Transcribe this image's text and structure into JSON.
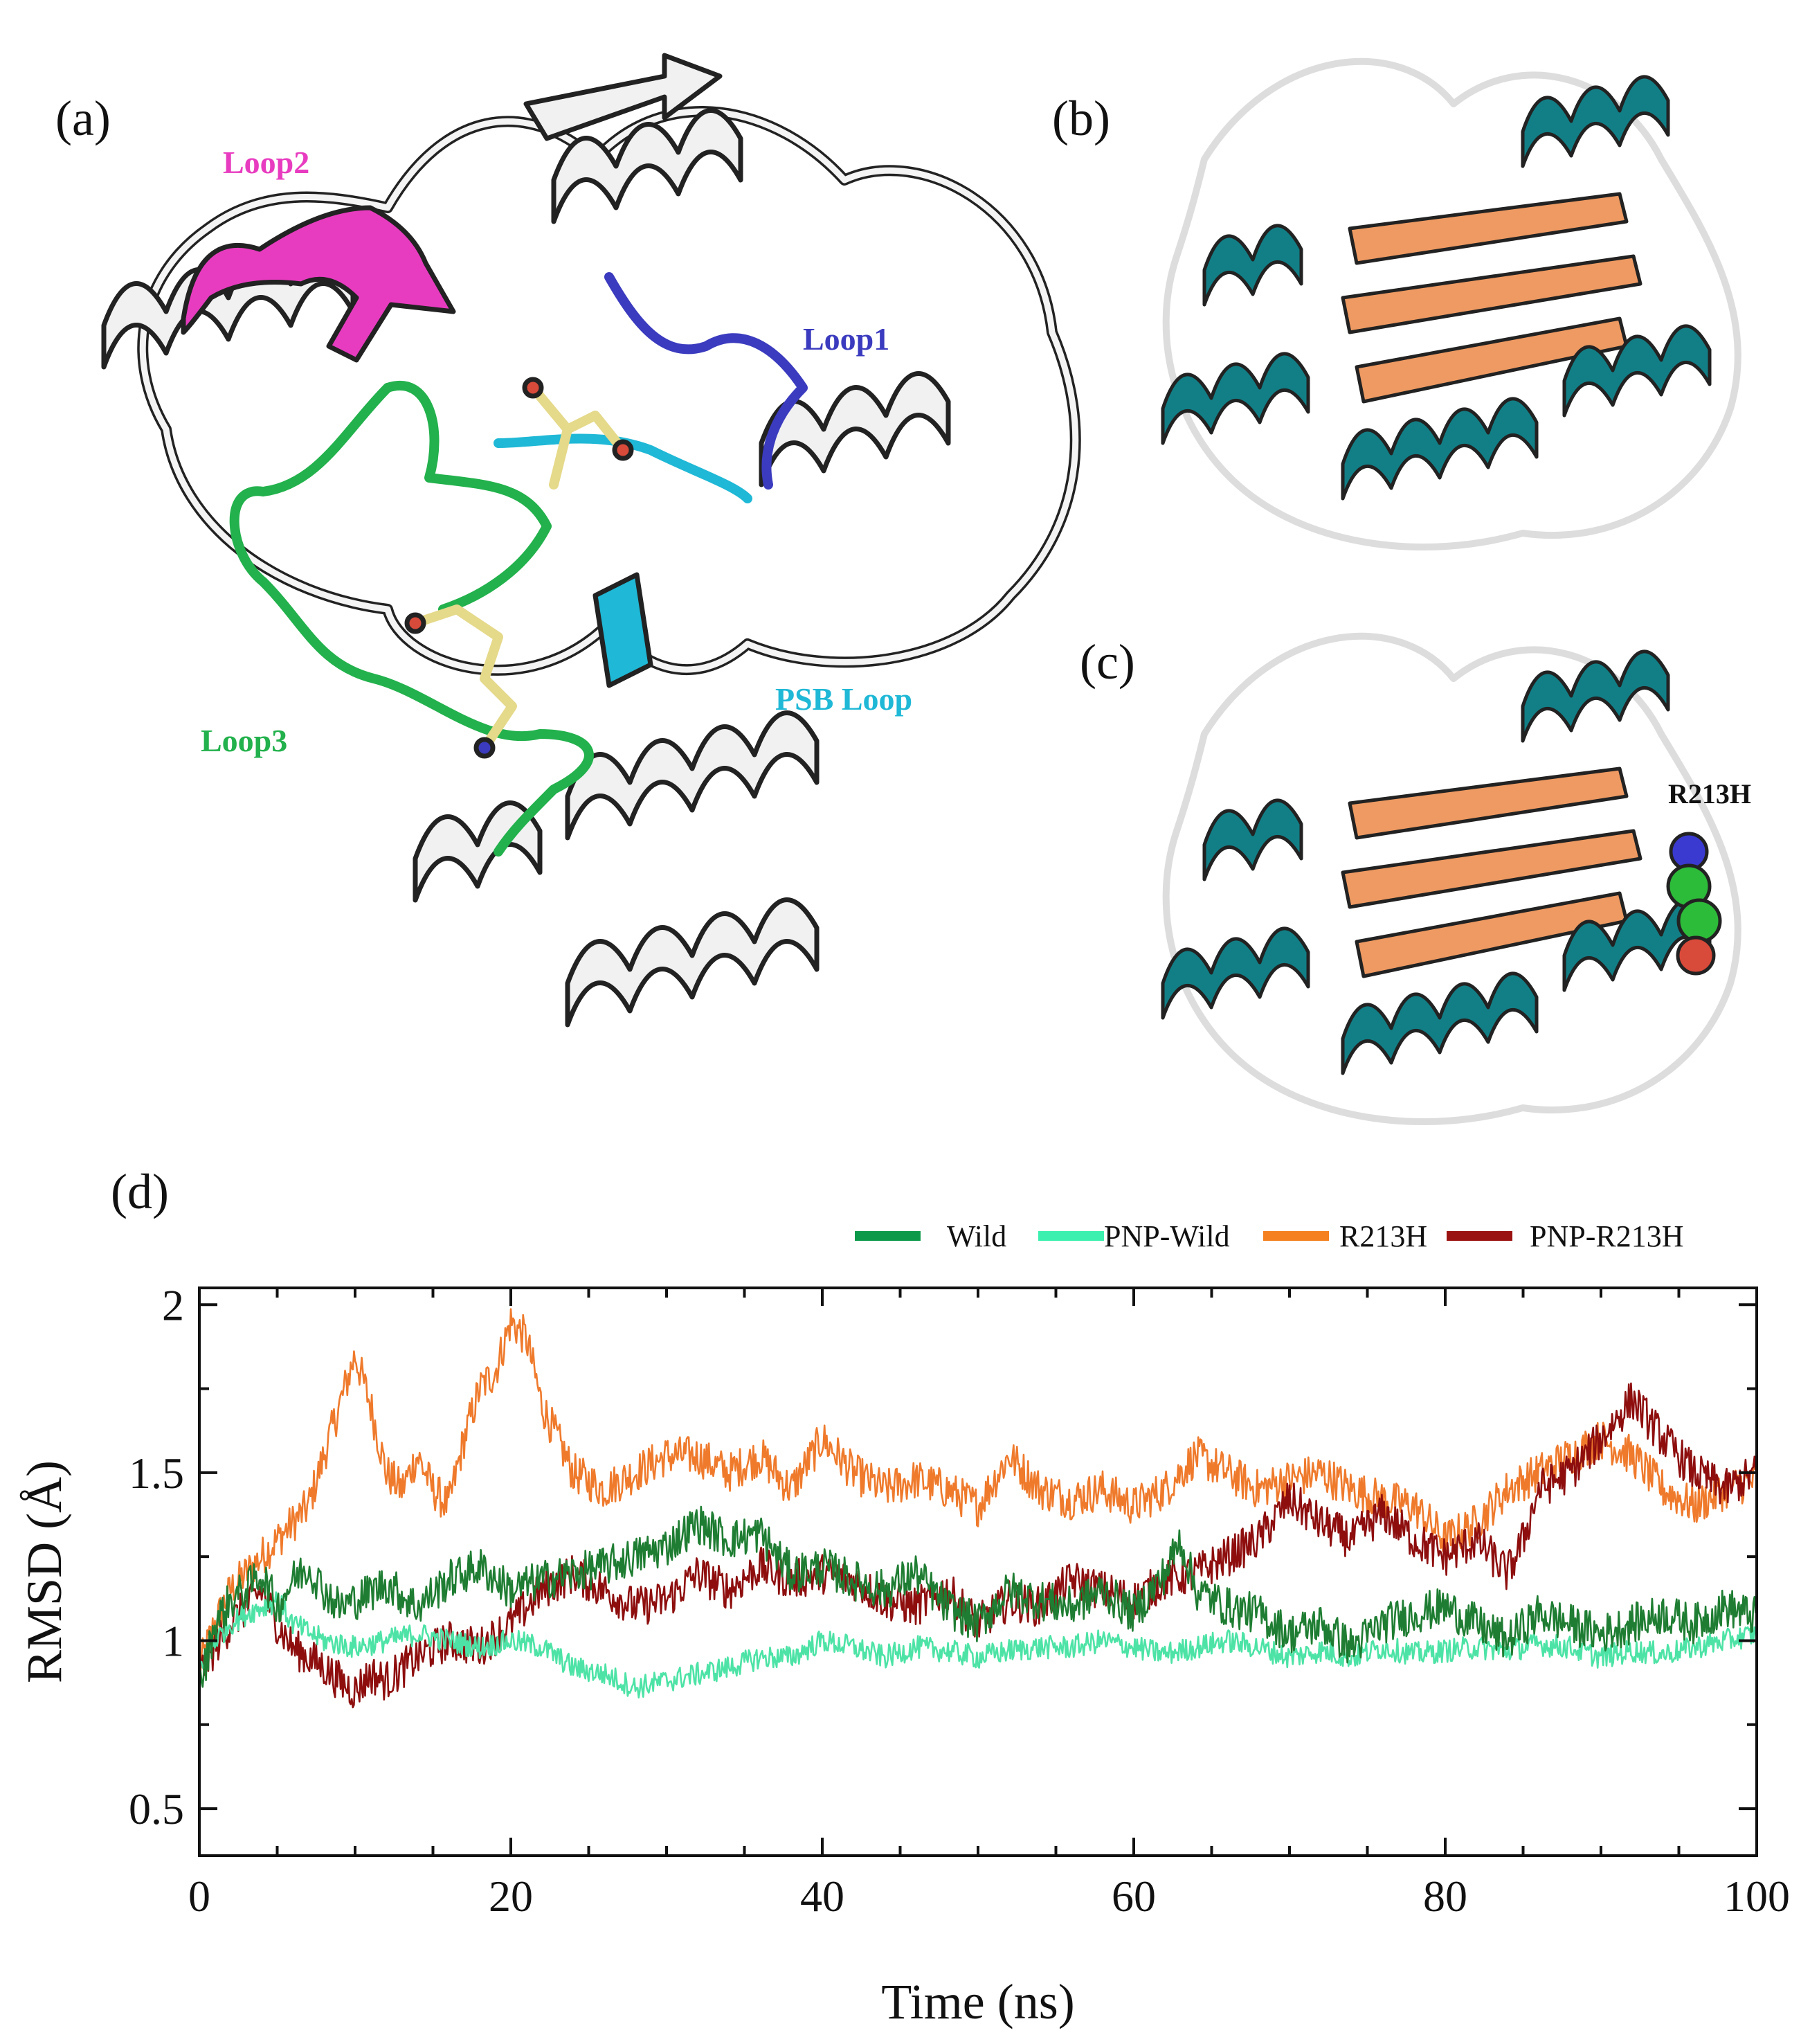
{
  "panels": {
    "a": {
      "letter": "(a)",
      "labels": {
        "loop1": {
          "text": "Loop1",
          "color": "#3b3bbf"
        },
        "loop2": {
          "text": "Loop2",
          "color": "#e83cc0"
        },
        "loop3": {
          "text": "Loop3",
          "color": "#22b14c"
        },
        "psb": {
          "text": "PSB Loop",
          "color": "#1fb8d6"
        }
      }
    },
    "b": {
      "letter": "(b)"
    },
    "c": {
      "letter": "(c)",
      "mutation_label": "R213H"
    },
    "d": {
      "letter": "(d)"
    }
  },
  "colors": {
    "helix": "#127f86",
    "strand": "#ee9a62",
    "coil": "#f2f2f2",
    "outline": "#222222"
  },
  "chart_data": {
    "type": "line",
    "xlabel": "Time (ns)",
    "ylabel": "RMSD (Å)",
    "xlim": [
      0,
      100
    ],
    "ylim": [
      0.36,
      2.05
    ],
    "xticks": [
      0,
      20,
      40,
      60,
      80,
      100
    ],
    "yticks": [
      0.5,
      1,
      1.5,
      2
    ],
    "ytick_labels": [
      "0.5",
      "1",
      "1.5",
      "2"
    ],
    "legend_position": "top-right, above plot",
    "grid": false,
    "series": [
      {
        "name": "Wild",
        "color": "#1e7d32",
        "legend_color": "#0c9a4a",
        "x": [
          0,
          1,
          2,
          3,
          4,
          5,
          6,
          7,
          8,
          9,
          10,
          12,
          14,
          16,
          18,
          20,
          22,
          24,
          26,
          28,
          30,
          32,
          34,
          36,
          38,
          40,
          42,
          44,
          46,
          48,
          50,
          52,
          54,
          56,
          58,
          60,
          62,
          63,
          64,
          66,
          68,
          70,
          72,
          74,
          76,
          78,
          80,
          82,
          84,
          86,
          88,
          90,
          92,
          94,
          96,
          98,
          100
        ],
        "y": [
          0.85,
          1.05,
          1.12,
          1.15,
          1.2,
          1.1,
          1.18,
          1.22,
          1.15,
          1.1,
          1.12,
          1.17,
          1.1,
          1.18,
          1.22,
          1.15,
          1.18,
          1.2,
          1.22,
          1.25,
          1.28,
          1.35,
          1.3,
          1.32,
          1.2,
          1.22,
          1.18,
          1.15,
          1.2,
          1.1,
          1.05,
          1.15,
          1.12,
          1.1,
          1.15,
          1.08,
          1.2,
          1.3,
          1.15,
          1.1,
          1.08,
          1.02,
          1.05,
          0.98,
          1.05,
          1.08,
          1.1,
          1.05,
          1.0,
          1.08,
          1.05,
          1.02,
          1.05,
          1.08,
          1.05,
          1.1,
          1.07
        ]
      },
      {
        "name": "PNP-Wild",
        "color": "#4de3a6",
        "legend_color": "#3cf0b0",
        "x": [
          0,
          1,
          2,
          3,
          4,
          5,
          6,
          8,
          10,
          12,
          14,
          16,
          18,
          20,
          22,
          24,
          26,
          28,
          30,
          32,
          34,
          36,
          38,
          40,
          42,
          44,
          46,
          48,
          50,
          52,
          54,
          56,
          58,
          60,
          62,
          64,
          66,
          68,
          70,
          72,
          74,
          76,
          78,
          80,
          82,
          84,
          86,
          88,
          90,
          92,
          94,
          96,
          98,
          100
        ],
        "y": [
          0.92,
          1.0,
          1.05,
          1.08,
          1.1,
          1.12,
          1.05,
          1.0,
          0.98,
          1.0,
          1.02,
          1.0,
          0.98,
          1.0,
          0.98,
          0.92,
          0.9,
          0.86,
          0.88,
          0.9,
          0.92,
          0.95,
          0.95,
          1.0,
          0.98,
          0.95,
          0.98,
          0.97,
          0.95,
          0.97,
          0.98,
          0.98,
          1.0,
          0.98,
          0.96,
          0.98,
          1.0,
          0.98,
          0.95,
          0.97,
          0.95,
          0.98,
          0.96,
          0.97,
          0.98,
          0.97,
          0.99,
          0.98,
          0.95,
          0.97,
          0.96,
          0.98,
          1.0,
          1.02
        ]
      },
      {
        "name": "R213H",
        "color": "#ef7a2c",
        "legend_color": "#f4801f",
        "x": [
          0,
          1,
          2,
          3,
          4,
          5,
          6,
          7,
          8,
          9,
          10,
          11,
          12,
          13,
          14,
          15,
          16,
          17,
          18,
          19,
          20,
          21,
          22,
          23,
          24,
          26,
          28,
          30,
          32,
          34,
          36,
          38,
          40,
          42,
          44,
          46,
          48,
          50,
          52,
          54,
          56,
          58,
          60,
          62,
          64,
          66,
          68,
          70,
          72,
          74,
          76,
          78,
          80,
          82,
          84,
          86,
          88,
          90,
          92,
          94,
          96,
          98,
          100
        ],
        "y": [
          0.92,
          1.05,
          1.15,
          1.2,
          1.25,
          1.3,
          1.35,
          1.4,
          1.55,
          1.7,
          1.85,
          1.7,
          1.5,
          1.45,
          1.55,
          1.45,
          1.4,
          1.6,
          1.75,
          1.8,
          1.95,
          1.9,
          1.7,
          1.6,
          1.5,
          1.45,
          1.5,
          1.55,
          1.55,
          1.5,
          1.55,
          1.45,
          1.6,
          1.5,
          1.45,
          1.48,
          1.45,
          1.4,
          1.55,
          1.45,
          1.42,
          1.45,
          1.4,
          1.45,
          1.55,
          1.5,
          1.45,
          1.48,
          1.5,
          1.45,
          1.42,
          1.4,
          1.3,
          1.35,
          1.45,
          1.5,
          1.55,
          1.6,
          1.55,
          1.45,
          1.4,
          1.45,
          1.48
        ]
      },
      {
        "name": "PNP-R213H",
        "color": "#8e0e0e",
        "legend_color": "#9b1212",
        "x": [
          0,
          1,
          2,
          3,
          4,
          5,
          6,
          7,
          8,
          9,
          10,
          11,
          12,
          14,
          16,
          18,
          20,
          22,
          24,
          26,
          28,
          30,
          32,
          34,
          36,
          38,
          40,
          42,
          44,
          46,
          48,
          50,
          52,
          54,
          56,
          58,
          60,
          62,
          64,
          66,
          68,
          70,
          72,
          74,
          76,
          78,
          80,
          82,
          84,
          85,
          86,
          88,
          90,
          92,
          94,
          96,
          98,
          100
        ],
        "y": [
          0.9,
          0.98,
          1.05,
          1.1,
          1.15,
          1.05,
          0.98,
          0.95,
          0.92,
          0.88,
          0.85,
          0.9,
          0.88,
          0.95,
          1.0,
          0.98,
          1.05,
          1.15,
          1.2,
          1.15,
          1.1,
          1.12,
          1.2,
          1.15,
          1.22,
          1.18,
          1.2,
          1.18,
          1.12,
          1.1,
          1.15,
          1.05,
          1.12,
          1.1,
          1.18,
          1.15,
          1.12,
          1.18,
          1.2,
          1.25,
          1.3,
          1.42,
          1.35,
          1.3,
          1.38,
          1.3,
          1.25,
          1.3,
          1.2,
          1.3,
          1.45,
          1.5,
          1.6,
          1.72,
          1.6,
          1.5,
          1.45,
          1.5
        ]
      }
    ]
  }
}
